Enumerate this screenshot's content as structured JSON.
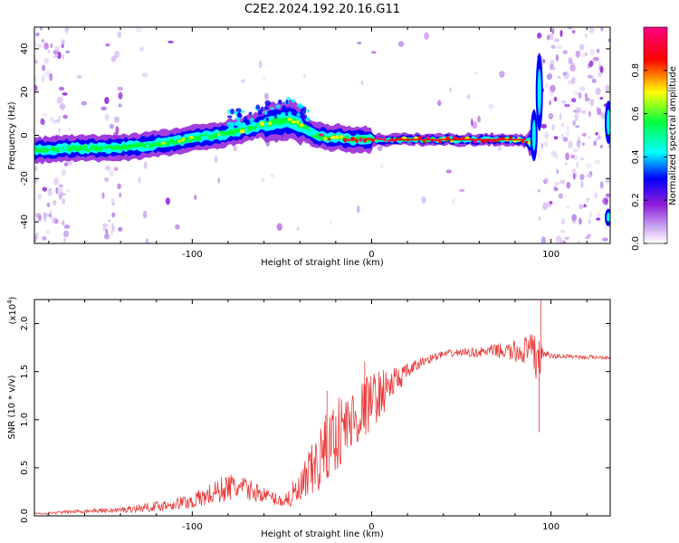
{
  "figure": {
    "title": "C2E2.2024.192.20.16.G11"
  },
  "colors": {
    "frame": "#000000",
    "snr_line": "#e83a3a",
    "colormap": [
      "#ffffff",
      "#8f1cd8",
      "#0000ff",
      "#00ffff",
      "#00ff40",
      "#ffff00",
      "#ff0000",
      "#ff0080"
    ]
  },
  "chart_data": [
    {
      "type": "heatmap",
      "title": "C2E2.2024.192.20.16.G11",
      "xlabel": "Height of straight line (km)",
      "ylabel": "Frequency (Hz)",
      "xlim": [
        -188,
        133
      ],
      "ylim": [
        -50,
        50
      ],
      "x_ticks": [
        -100,
        0,
        100
      ],
      "y_ticks": [
        -40,
        -20,
        0,
        20,
        40
      ],
      "colorbar": {
        "label": "Normalized spectral amplitude",
        "range": [
          0,
          1
        ],
        "ticks": [
          "0.0",
          "0.2",
          "0.4",
          "0.6",
          "0.8"
        ]
      },
      "ridge": {
        "x": [
          -188,
          -170,
          -150,
          -130,
          -110,
          -95,
          -80,
          -65,
          -55,
          -45,
          -38,
          -32,
          -25,
          -18,
          -10,
          0,
          20,
          40,
          60,
          80,
          88,
          91
        ],
        "freq": [
          -7,
          -6,
          -6,
          -5,
          -3,
          -1,
          1,
          4,
          6,
          7,
          4,
          0,
          -1,
          -1,
          -2,
          -2,
          -2,
          -2,
          -2,
          -2,
          -3,
          -3
        ]
      },
      "noise_band_x": [
        93,
        133
      ],
      "grid": false
    },
    {
      "type": "line",
      "xlabel": "Height of straight line (km)",
      "ylabel": "SNR (10 * v/v)",
      "y_scale_label": "(x10",
      "y_scale_exponent": "4",
      "xlim": [
        -188,
        133
      ],
      "ylim": [
        0,
        2.25
      ],
      "x_ticks": [
        -100,
        0,
        100
      ],
      "y_ticks": [
        "0.0",
        "0.5",
        "1.0",
        "1.5",
        "2.0"
      ],
      "series": [
        {
          "x": [
            -188,
            -160,
            -140,
            -120,
            -100,
            -90,
            -80,
            -70,
            -60,
            -50,
            -40,
            -30,
            -20,
            -10,
            0,
            10,
            20,
            30,
            40,
            50,
            60,
            70,
            80,
            85,
            90,
            93,
            95,
            100,
            110,
            120,
            133
          ],
          "values": [
            0.02,
            0.05,
            0.06,
            0.1,
            0.15,
            0.22,
            0.3,
            0.28,
            0.22,
            0.15,
            0.25,
            0.55,
            0.85,
            1.0,
            1.2,
            1.35,
            1.5,
            1.62,
            1.68,
            1.7,
            1.7,
            1.72,
            1.7,
            1.72,
            1.7,
            1.65,
            1.7,
            1.66,
            1.66,
            1.65,
            1.65
          ],
          "noise": [
            0.01,
            0.02,
            0.03,
            0.05,
            0.08,
            0.12,
            0.15,
            0.12,
            0.08,
            0.06,
            0.2,
            0.35,
            0.4,
            0.35,
            0.3,
            0.2,
            0.08,
            0.05,
            0.04,
            0.04,
            0.05,
            0.07,
            0.12,
            0.15,
            0.2,
            0.4,
            0.05,
            0.03,
            0.02,
            0.02,
            0.02
          ],
          "spikes": [
            {
              "x": 94.5,
              "value": 2.25
            },
            {
              "x": 93.5,
              "value": 0.87
            },
            {
              "x": -4,
              "value": 1.6
            },
            {
              "x": -25,
              "value": 1.3
            }
          ]
        }
      ],
      "grid": false
    }
  ]
}
